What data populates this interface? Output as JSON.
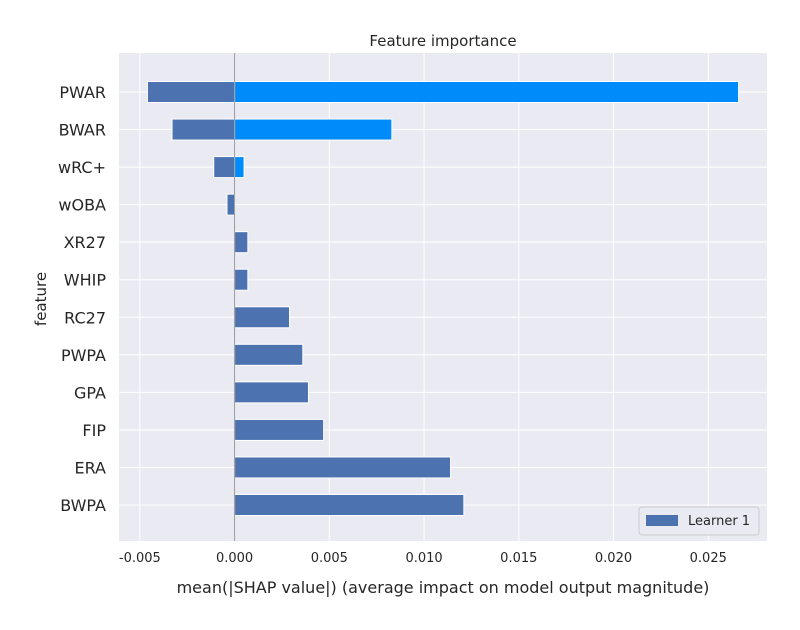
{
  "chart_data": {
    "type": "bar",
    "orientation": "horizontal",
    "title": "Feature importance",
    "xlabel": "mean(|SHAP value|) (average impact on model output magnitude)",
    "ylabel": "feature",
    "xlim": [
      -0.0061,
      0.0281
    ],
    "xticks": [
      -0.005,
      0.0,
      0.005,
      0.01,
      0.015,
      0.02,
      0.025
    ],
    "xtick_labels": [
      "-0.005",
      "0.000",
      "0.005",
      "0.010",
      "0.015",
      "0.020",
      "0.025"
    ],
    "categories": [
      "PWAR",
      "BWAR",
      "wRC+",
      "wOBA",
      "XR27",
      "WHIP",
      "RC27",
      "PWPA",
      "GPA",
      "FIP",
      "ERA",
      "BWPA"
    ],
    "series": [
      {
        "name": "Learner 1",
        "color": "#4c72b0",
        "values": [
          -0.0046,
          -0.0033,
          -0.0011,
          -0.0004,
          0.0007,
          0.0007,
          0.0029,
          0.0036,
          0.0039,
          0.0047,
          0.0114,
          0.0121
        ]
      },
      {
        "color": "#008bfb",
        "values": [
          0.0266,
          0.0083,
          0.0005,
          null,
          null,
          null,
          null,
          null,
          null,
          null,
          null,
          null
        ]
      }
    ],
    "grid": true,
    "legend_position": "bottom-right",
    "background_color": "#eaeaf2",
    "grid_color": "#ffffff"
  }
}
